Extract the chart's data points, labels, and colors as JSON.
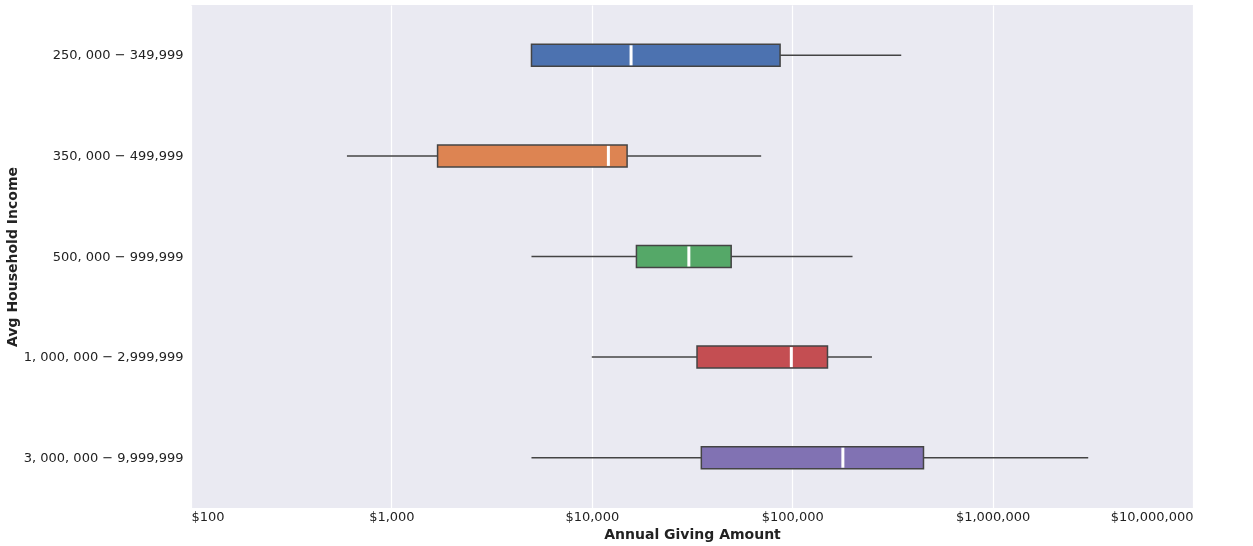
{
  "chart_data": {
    "type": "box",
    "orientation": "horizontal",
    "log": "x",
    "xlabel": "Annual Giving Amount",
    "ylabel": "Avg Household Income",
    "categories": [
      "250, 000 − 349,999",
      "350, 000 − 499,999",
      "500, 000 − 999,999",
      "1, 000, 000 − 2,999,999",
      "3, 000, 000 − 9,999,999"
    ],
    "boxes": [
      {
        "low": 5000,
        "q1": 5000,
        "median": 15700,
        "q3": 87000,
        "high": 350000
      },
      {
        "low": 600,
        "q1": 1700,
        "median": 12100,
        "q3": 15000,
        "high": 70000
      },
      {
        "low": 5000,
        "q1": 16700,
        "median": 30500,
        "q3": 49600,
        "high": 200000
      },
      {
        "low": 10000,
        "q1": 33500,
        "median": 99000,
        "q3": 150000,
        "high": 250000
      },
      {
        "low": 5000,
        "q1": 35200,
        "median": 179000,
        "q3": 452000,
        "high": 3000000
      }
    ],
    "colors": [
      "#4c72b0",
      "#dd8452",
      "#55a868",
      "#c44e52",
      "#8172b3"
    ],
    "xlim": [
      100,
      10000000
    ],
    "xticks": [
      {
        "value": 100,
        "label": "$100"
      },
      {
        "value": 1000,
        "label": "$1,000"
      },
      {
        "value": 10000,
        "label": "$10,000"
      },
      {
        "value": 100000,
        "label": "$100,000"
      },
      {
        "value": 1000000,
        "label": "$1,000,000"
      },
      {
        "value": 10000000,
        "label": "$10,000,000"
      }
    ],
    "grid": "x",
    "legend": false
  }
}
